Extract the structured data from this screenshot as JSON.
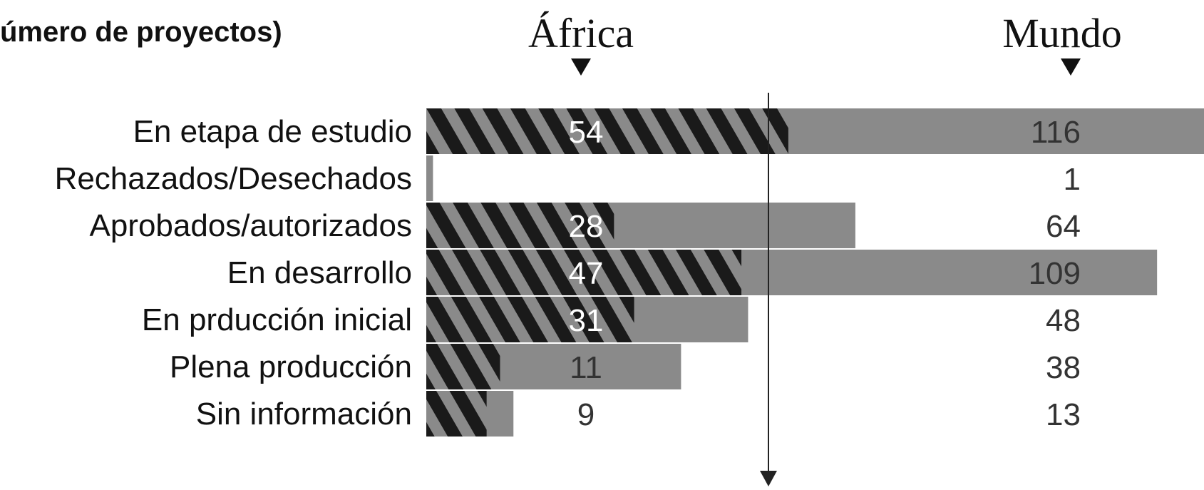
{
  "title": "úmero de proyectos)",
  "colors": {
    "world_bar": "#8a8a8a",
    "hatch_dark": "#1a1a1a",
    "value_label_on_bar": "#ffffff",
    "value_label_plain": "#333333",
    "axis": "#222222"
  },
  "chart_data": {
    "type": "bar",
    "orientation": "horizontal",
    "title": "úmero de proyectos)",
    "categories": [
      "En etapa de estudio",
      "Rechazados/Desechados",
      "Aprobados/autorizados",
      "En desarrollo",
      "En prducción inicial",
      "Plena producción",
      "Sin información"
    ],
    "series": [
      {
        "name": "África",
        "values": [
          54,
          0,
          28,
          47,
          31,
          11,
          9
        ],
        "value_labels": [
          "54",
          "",
          "28",
          "47",
          "31",
          "11",
          "9"
        ],
        "fill": "hatched"
      },
      {
        "name": "Mundo",
        "values": [
          116,
          1,
          64,
          109,
          48,
          38,
          13
        ],
        "value_labels": [
          "116",
          "1",
          "64",
          "109",
          "48",
          "38",
          "13"
        ],
        "fill": "solid-gray"
      }
    ],
    "xlim": [
      0,
      116
    ],
    "overlay": true,
    "grid": false,
    "legend": "top-markers"
  }
}
